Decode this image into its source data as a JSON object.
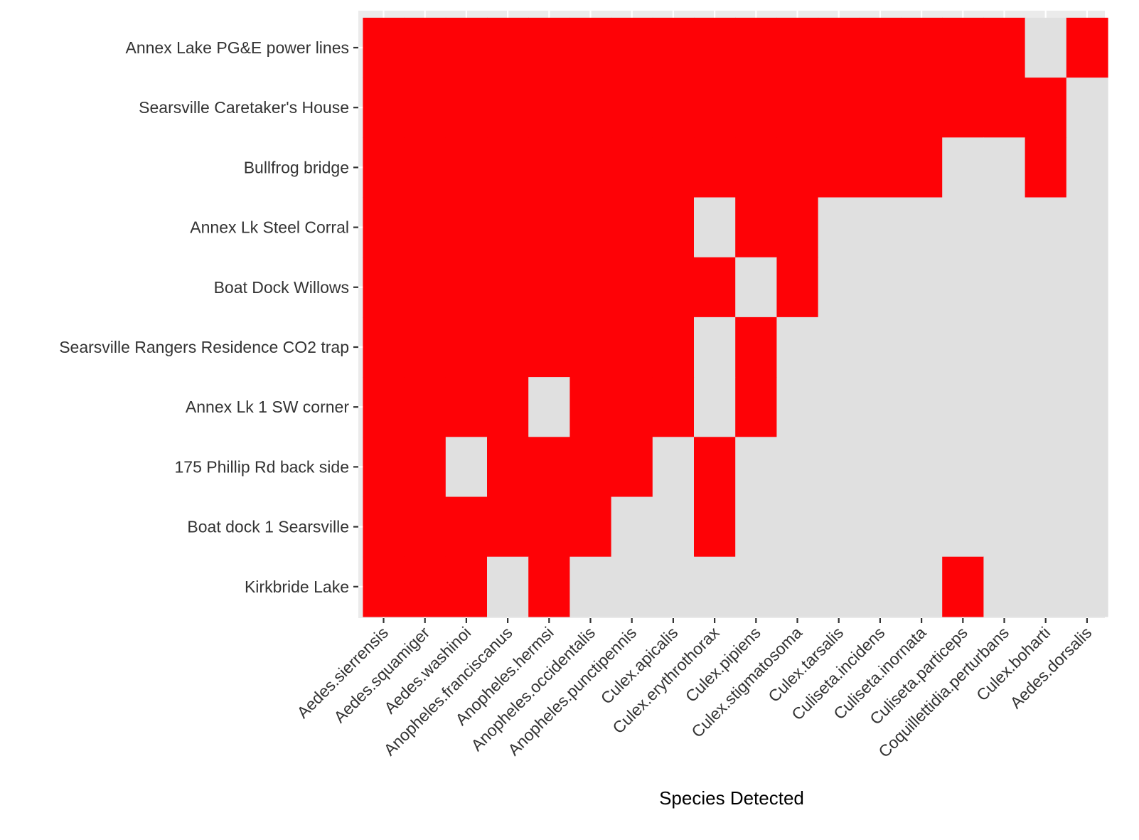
{
  "chart_data": {
    "type": "heatmap",
    "title": "",
    "xlabel": "Species Detected",
    "ylabel": "",
    "legend": "none",
    "grid": true,
    "colors": {
      "present": "#fe0206",
      "absent": "#e0e0e0",
      "panel_background": "#ebebeb",
      "gridline": "#ffffff",
      "tick": "#333333",
      "tick_label": "#333333",
      "axis_title": "#000000"
    },
    "x_categories": [
      "Aedes.sierrensis",
      "Aedes.squamiger",
      "Aedes.washinoi",
      "Anopheles.franciscanus",
      "Anopheles.hermsi",
      "Anopheles.occidentalis",
      "Anopheles.punctipennis",
      "Culex.apicalis",
      "Culex.erythrothorax",
      "Culex.pipiens",
      "Culex.stigmatosoma",
      "Culex.tarsalis",
      "Culiseta.incidens",
      "Culiseta.inornata",
      "Culiseta.particeps",
      "Coquillettidia.perturbans",
      "Culex.boharti",
      "Aedes.dorsalis"
    ],
    "y_categories": [
      "Annex Lake PG&E power lines",
      "Searsville Caretaker's House",
      "Bullfrog bridge",
      "Annex Lk Steel Corral",
      "Boat Dock Willows",
      "Searsville Rangers Residence CO2  trap",
      "Annex Lk 1 SW corner",
      "175 Phillip Rd back side",
      "Boat dock 1 Searsville",
      "Kirkbride Lake"
    ],
    "values": [
      [
        1,
        1,
        1,
        1,
        1,
        1,
        1,
        1,
        1,
        1,
        1,
        1,
        1,
        1,
        1,
        1,
        0,
        1
      ],
      [
        1,
        1,
        1,
        1,
        1,
        1,
        1,
        1,
        1,
        1,
        1,
        1,
        1,
        1,
        1,
        1,
        1,
        0
      ],
      [
        1,
        1,
        1,
        1,
        1,
        1,
        1,
        1,
        1,
        1,
        1,
        1,
        1,
        1,
        0,
        0,
        1,
        0
      ],
      [
        1,
        1,
        1,
        1,
        1,
        1,
        1,
        1,
        0,
        1,
        1,
        0,
        0,
        0,
        0,
        0,
        0,
        0
      ],
      [
        1,
        1,
        1,
        1,
        1,
        1,
        1,
        1,
        1,
        0,
        1,
        0,
        0,
        0,
        0,
        0,
        0,
        0
      ],
      [
        1,
        1,
        1,
        1,
        1,
        1,
        1,
        1,
        0,
        1,
        0,
        0,
        0,
        0,
        0,
        0,
        0,
        0
      ],
      [
        1,
        1,
        1,
        1,
        0,
        1,
        1,
        1,
        0,
        1,
        0,
        0,
        0,
        0,
        0,
        0,
        0,
        0
      ],
      [
        1,
        1,
        0,
        1,
        1,
        1,
        1,
        0,
        1,
        0,
        0,
        0,
        0,
        0,
        0,
        0,
        0,
        0
      ],
      [
        1,
        1,
        1,
        1,
        1,
        1,
        0,
        0,
        1,
        0,
        0,
        0,
        0,
        0,
        0,
        0,
        0,
        0
      ],
      [
        1,
        1,
        1,
        0,
        1,
        0,
        0,
        0,
        0,
        0,
        0,
        0,
        0,
        0,
        1,
        0,
        0,
        0
      ]
    ]
  }
}
